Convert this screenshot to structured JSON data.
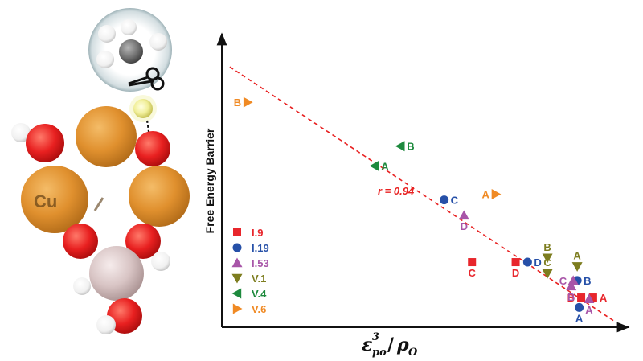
{
  "chart_data": {
    "type": "scatter",
    "title": "",
    "ylabel": "Free Energy Barrier",
    "xlabel": "ε_po^3 / ρ_O",
    "xlabel_parts": {
      "main1": "ε",
      "sup": "3",
      "sub": "po",
      "slash": "/",
      "main2": "ρ",
      "sub2": "O"
    },
    "xlim": [
      0,
      1
    ],
    "ylim": [
      0,
      1
    ],
    "correlation_label": "r = 0.94",
    "fit_line": {
      "x": [
        0.02,
        0.99
      ],
      "y": [
        0.92,
        0.02
      ]
    },
    "legend_position": "lower-left",
    "series": [
      {
        "name": "I.9",
        "marker": "square",
        "color": "#e8262c",
        "points": [
          {
            "x": 0.63,
            "y": 0.23,
            "label": "C",
            "lpos": "below"
          },
          {
            "x": 0.74,
            "y": 0.23,
            "label": "D",
            "lpos": "below"
          },
          {
            "x": 0.905,
            "y": 0.105,
            "label": "B",
            "lpos": "left"
          },
          {
            "x": 0.935,
            "y": 0.105,
            "label": "A",
            "lpos": "right"
          }
        ]
      },
      {
        "name": "I.19",
        "marker": "circle",
        "color": "#2650a8",
        "points": [
          {
            "x": 0.56,
            "y": 0.45,
            "label": "C",
            "lpos": "right"
          },
          {
            "x": 0.77,
            "y": 0.23,
            "label": "D",
            "lpos": "right"
          },
          {
            "x": 0.895,
            "y": 0.165,
            "label": "B",
            "lpos": "right"
          },
          {
            "x": 0.9,
            "y": 0.07,
            "label": "A",
            "lpos": "below"
          }
        ]
      },
      {
        "name": "I.53",
        "marker": "triangle-up",
        "color": "#a855a8",
        "points": [
          {
            "x": 0.61,
            "y": 0.395,
            "label": "D",
            "lpos": "below"
          },
          {
            "x": 0.885,
            "y": 0.165,
            "label": "C",
            "lpos": "left"
          },
          {
            "x": 0.88,
            "y": 0.145,
            "label": "B",
            "lpos": "below"
          },
          {
            "x": 0.925,
            "y": 0.1,
            "label": "A",
            "lpos": "below"
          }
        ]
      },
      {
        "name": "V.1",
        "marker": "triangle-down",
        "color": "#7d7d1f",
        "points": [
          {
            "x": 0.82,
            "y": 0.245,
            "label": "B",
            "lpos": "above"
          },
          {
            "x": 0.82,
            "y": 0.19,
            "label": "C",
            "lpos": "above"
          },
          {
            "x": 0.895,
            "y": 0.215,
            "label": "A",
            "lpos": "above"
          }
        ]
      },
      {
        "name": "V.4",
        "marker": "triangle-left",
        "color": "#1e8a3e",
        "points": [
          {
            "x": 0.45,
            "y": 0.64,
            "label": "B",
            "lpos": "right"
          },
          {
            "x": 0.385,
            "y": 0.57,
            "label": "A",
            "lpos": "right"
          }
        ]
      },
      {
        "name": "V.6",
        "marker": "triangle-right",
        "color": "#f08a24",
        "points": [
          {
            "x": 0.065,
            "y": 0.795,
            "label": "B",
            "lpos": "left"
          },
          {
            "x": 0.69,
            "y": 0.47,
            "label": "A",
            "lpos": "left"
          }
        ]
      }
    ]
  },
  "molecule": {
    "metal_label": "Cu",
    "colors": {
      "copper": "#e0902e",
      "oxygen": "#e82020",
      "hydrogen": "#ffffff",
      "silicon": "#d8c4c4",
      "carbon": "#707070"
    }
  }
}
